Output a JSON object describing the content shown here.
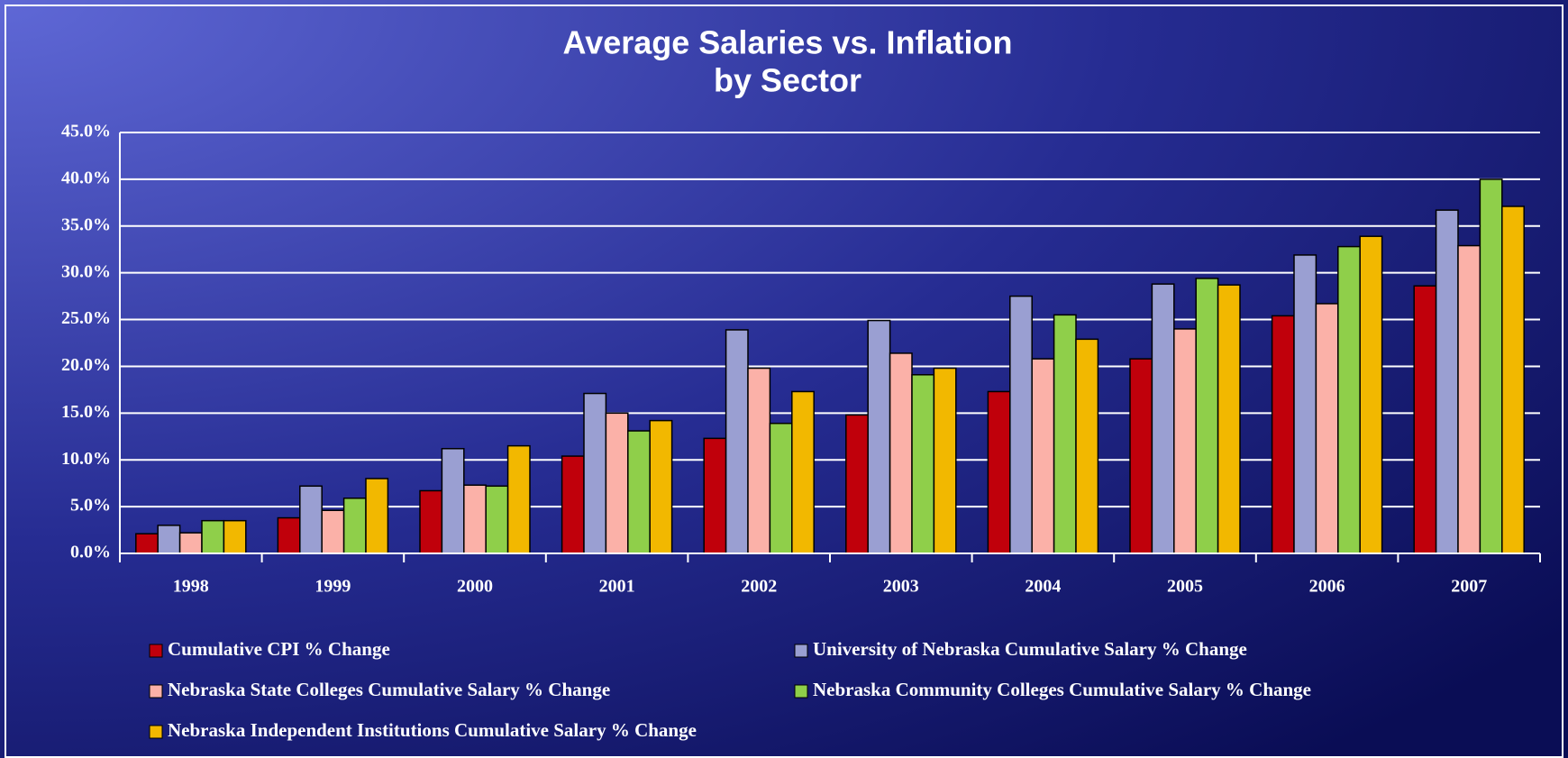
{
  "chart_data": {
    "type": "bar",
    "title": "Average Salaries vs. Inflation",
    "subtitle": "by Sector",
    "categories": [
      "1998",
      "1999",
      "2000",
      "2001",
      "2002",
      "2003",
      "2004",
      "2005",
      "2006",
      "2007"
    ],
    "series": [
      {
        "name": "Cumulative CPI % Change",
        "color": "#c0000b",
        "values": [
          2.1,
          3.8,
          6.7,
          10.4,
          12.3,
          14.8,
          17.3,
          20.8,
          25.4,
          28.6
        ]
      },
      {
        "name": "University of Nebraska Cumulative Salary % Change",
        "color": "#9a9fd2",
        "values": [
          3.0,
          7.2,
          11.2,
          17.1,
          23.9,
          24.9,
          27.5,
          28.8,
          31.9,
          36.7
        ]
      },
      {
        "name": "Nebraska State Colleges Cumulative Salary % Change",
        "color": "#fbb1a8",
        "values": [
          2.2,
          4.6,
          7.3,
          15.0,
          19.8,
          21.4,
          20.8,
          24.0,
          26.7,
          32.9
        ]
      },
      {
        "name": "Nebraska Community Colleges Cumulative Salary % Change",
        "color": "#8fcf4a",
        "values": [
          3.5,
          5.9,
          7.2,
          13.1,
          13.9,
          19.1,
          25.5,
          29.4,
          32.8,
          40.0
        ]
      },
      {
        "name": "Nebraska Independent Institutions Cumulative Salary % Change",
        "color": "#f2b800",
        "values": [
          3.5,
          8.0,
          11.5,
          14.2,
          17.3,
          19.8,
          22.9,
          28.7,
          33.9,
          37.1
        ]
      }
    ],
    "ylim": [
      0,
      45
    ],
    "yticks": [
      {
        "value": 0,
        "label": "0.0%"
      },
      {
        "value": 5,
        "label": "5.0%"
      },
      {
        "value": 10,
        "label": "10.0%"
      },
      {
        "value": 15,
        "label": "15.0%"
      },
      {
        "value": 20,
        "label": "20.0%"
      },
      {
        "value": 25,
        "label": "25.0%"
      },
      {
        "value": 30,
        "label": "30.0%"
      },
      {
        "value": 35,
        "label": "35.0%"
      },
      {
        "value": 40,
        "label": "40.0%"
      },
      {
        "value": 45,
        "label": "45.0%"
      }
    ],
    "grid": true,
    "legend": "bottom"
  }
}
